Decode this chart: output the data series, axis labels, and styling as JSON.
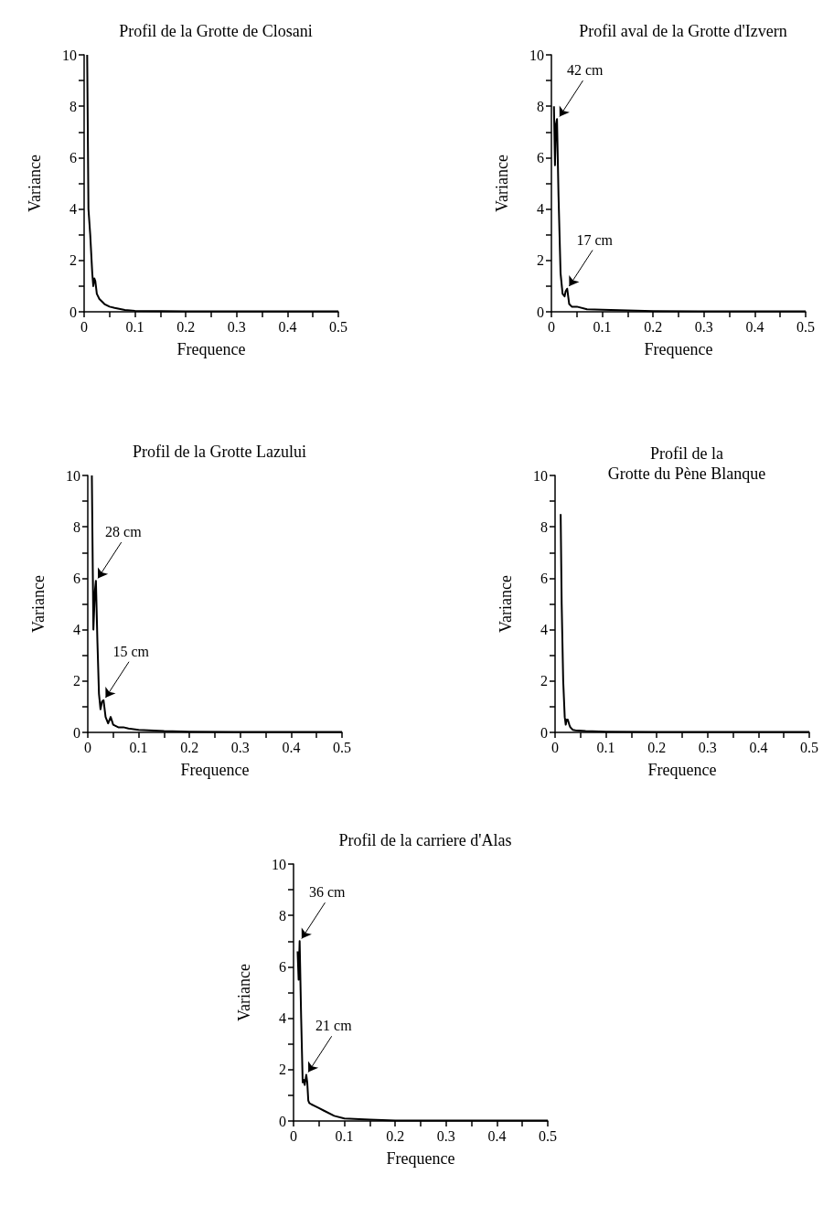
{
  "chart_data": [
    {
      "type": "line",
      "title": "Profil de la Grotte de Closani",
      "xlabel": "Frequence",
      "ylabel": "Variance",
      "xlim": [
        0,
        0.5
      ],
      "ylim": [
        0,
        10
      ],
      "xticks": [
        0,
        {
          "value": 0.05,
          "label": null
        },
        0.1,
        {
          "value": 0.15,
          "label": null
        },
        0.2,
        {
          "value": 0.25,
          "label": null
        },
        0.3,
        {
          "value": 0.35,
          "label": null
        },
        0.4,
        {
          "value": 0.45,
          "label": null
        },
        0.5
      ],
      "yticks": [
        0,
        {
          "value": 1,
          "label": null
        },
        2,
        {
          "value": 3,
          "label": null
        },
        4,
        {
          "value": 5,
          "label": null
        },
        6,
        {
          "value": 7,
          "label": null
        },
        8,
        {
          "value": 9,
          "label": null
        },
        10
      ],
      "grid": false,
      "marker": "none",
      "series": [
        {
          "color": "#000000",
          "x": [
            0.006,
            0.0085,
            0.012,
            0.016,
            0.018,
            0.02,
            0.022,
            0.025,
            0.03,
            0.04,
            0.05,
            0.06,
            0.08,
            0.1,
            0.15,
            0.2,
            0.3,
            0.4,
            0.5
          ],
          "values": [
            10,
            4,
            3,
            1.5,
            1,
            1.3,
            1.2,
            0.7,
            0.5,
            0.3,
            0.2,
            0.15,
            0.07,
            0.04,
            0.03,
            0.02,
            0.02,
            0.02,
            0.02
          ]
        }
      ]
    },
    {
      "type": "line",
      "title": "Profil aval de la Grotte d'Izvern",
      "xlabel": "Frequence",
      "ylabel": "Variance",
      "xlim": [
        0,
        0.5
      ],
      "ylim": [
        0,
        10
      ],
      "xticks": [
        0,
        {
          "value": 0.05,
          "label": null
        },
        0.1,
        {
          "value": 0.15,
          "label": null
        },
        0.2,
        {
          "value": 0.25,
          "label": null
        },
        0.3,
        {
          "value": 0.35,
          "label": null
        },
        0.4,
        {
          "value": 0.45,
          "label": null
        },
        0.5
      ],
      "yticks": [
        0,
        {
          "value": 1,
          "label": null
        },
        2,
        {
          "value": 3,
          "label": null
        },
        4,
        {
          "value": 5,
          "label": null
        },
        6,
        {
          "value": 7,
          "label": null
        },
        8,
        {
          "value": 9,
          "label": null
        },
        10
      ],
      "grid": false,
      "marker": "none",
      "annotations": [
        {
          "text": "42 cm",
          "x": 0.012,
          "y": 7.5
        },
        {
          "text": "17 cm",
          "x": 0.031,
          "y": 0.9
        }
      ],
      "series": [
        {
          "color": "#000000",
          "x": [
            0.005,
            0.007,
            0.009,
            0.011,
            0.014,
            0.018,
            0.022,
            0.026,
            0.028,
            0.031,
            0.035,
            0.04,
            0.05,
            0.07,
            0.1,
            0.15,
            0.2,
            0.3,
            0.4,
            0.5
          ],
          "values": [
            8,
            5.7,
            7.3,
            7.5,
            4.5,
            1.5,
            0.7,
            0.6,
            0.8,
            0.9,
            0.3,
            0.2,
            0.2,
            0.1,
            0.08,
            0.05,
            0.03,
            0.02,
            0.02,
            0.02
          ]
        }
      ]
    },
    {
      "type": "line",
      "title": "Profil de la Grotte Lazului",
      "xlabel": "Frequence",
      "ylabel": "Variance",
      "xlim": [
        0,
        0.5
      ],
      "ylim": [
        0,
        10
      ],
      "xticks": [
        0,
        {
          "value": 0.05,
          "label": null
        },
        0.1,
        {
          "value": 0.15,
          "label": null
        },
        0.2,
        {
          "value": 0.25,
          "label": null
        },
        0.3,
        {
          "value": 0.35,
          "label": null
        },
        0.4,
        {
          "value": 0.45,
          "label": null
        },
        0.5
      ],
      "yticks": [
        0,
        {
          "value": 1,
          "label": null
        },
        2,
        {
          "value": 3,
          "label": null
        },
        4,
        {
          "value": 5,
          "label": null
        },
        6,
        {
          "value": 7,
          "label": null
        },
        8,
        {
          "value": 9,
          "label": null
        },
        10
      ],
      "grid": false,
      "marker": "none",
      "annotations": [
        {
          "text": "28 cm",
          "x": 0.016,
          "y": 5.9
        },
        {
          "text": "15 cm",
          "x": 0.031,
          "y": 1.25
        }
      ],
      "series": [
        {
          "color": "#000000",
          "x": [
            0.008,
            0.011,
            0.014,
            0.016,
            0.019,
            0.022,
            0.025,
            0.028,
            0.031,
            0.035,
            0.04,
            0.045,
            0.05,
            0.06,
            0.07,
            0.08,
            0.1,
            0.15,
            0.2,
            0.3,
            0.4,
            0.5
          ],
          "values": [
            10,
            4,
            5.5,
            5.9,
            3.5,
            1.5,
            0.9,
            1.2,
            1.25,
            0.6,
            0.35,
            0.6,
            0.3,
            0.2,
            0.2,
            0.15,
            0.1,
            0.05,
            0.03,
            0.02,
            0.02,
            0.02
          ]
        }
      ]
    },
    {
      "type": "line",
      "title": "Profil de la\nGrotte du Pène Blanque",
      "xlabel": "Frequence",
      "ylabel": "Variance",
      "xlim": [
        0,
        0.5
      ],
      "ylim": [
        0,
        10
      ],
      "xticks": [
        0,
        {
          "value": 0.05,
          "label": null
        },
        0.1,
        {
          "value": 0.15,
          "label": null
        },
        0.2,
        {
          "value": 0.25,
          "label": null
        },
        0.3,
        {
          "value": 0.35,
          "label": null
        },
        0.4,
        {
          "value": 0.45,
          "label": null
        },
        0.5
      ],
      "yticks": [
        0,
        {
          "value": 1,
          "label": null
        },
        2,
        {
          "value": 3,
          "label": null
        },
        4,
        {
          "value": 5,
          "label": null
        },
        6,
        {
          "value": 7,
          "label": null
        },
        8,
        {
          "value": 9,
          "label": null
        },
        10
      ],
      "grid": false,
      "marker": "none",
      "series": [
        {
          "color": "#000000",
          "x": [
            0.011,
            0.013,
            0.016,
            0.019,
            0.021,
            0.023,
            0.025,
            0.028,
            0.03,
            0.035,
            0.04,
            0.06,
            0.1,
            0.2,
            0.3,
            0.4,
            0.5
          ],
          "values": [
            8.5,
            5,
            2,
            0.6,
            0.3,
            0.5,
            0.5,
            0.3,
            0.2,
            0.1,
            0.08,
            0.05,
            0.03,
            0.02,
            0.02,
            0.02,
            0.02
          ]
        }
      ]
    },
    {
      "type": "line",
      "title": "Profil de la carriere d'Alas",
      "xlabel": "Frequence",
      "ylabel": "Variance",
      "xlim": [
        0,
        0.5
      ],
      "ylim": [
        0,
        10
      ],
      "xticks": [
        0,
        {
          "value": 0.05,
          "label": null
        },
        0.1,
        {
          "value": 0.15,
          "label": null
        },
        0.2,
        {
          "value": 0.25,
          "label": null
        },
        0.3,
        {
          "value": 0.35,
          "label": null
        },
        0.4,
        {
          "value": 0.45,
          "label": null
        },
        0.5
      ],
      "yticks": [
        0,
        {
          "value": 1,
          "label": null
        },
        2,
        {
          "value": 3,
          "label": null
        },
        4,
        {
          "value": 5,
          "label": null
        },
        6,
        {
          "value": 7,
          "label": null
        },
        8,
        {
          "value": 9,
          "label": null
        },
        10
      ],
      "grid": false,
      "marker": "none",
      "annotations": [
        {
          "text": "36 cm",
          "x": 0.012,
          "y": 7
        },
        {
          "text": "21 cm",
          "x": 0.025,
          "y": 1.8
        }
      ],
      "series": [
        {
          "color": "#000000",
          "x": [
            0.008,
            0.01,
            0.012,
            0.015,
            0.018,
            0.02,
            0.022,
            0.025,
            0.027,
            0.029,
            0.031,
            0.035,
            0.04,
            0.05,
            0.06,
            0.08,
            0.1,
            0.15,
            0.2,
            0.3,
            0.4,
            0.5
          ],
          "values": [
            6.6,
            5.5,
            7,
            4,
            1.5,
            1.6,
            1.4,
            1.8,
            1.5,
            0.8,
            0.7,
            0.65,
            0.6,
            0.5,
            0.4,
            0.2,
            0.1,
            0.05,
            0.02,
            0.02,
            0.02,
            0.02
          ]
        }
      ]
    }
  ]
}
